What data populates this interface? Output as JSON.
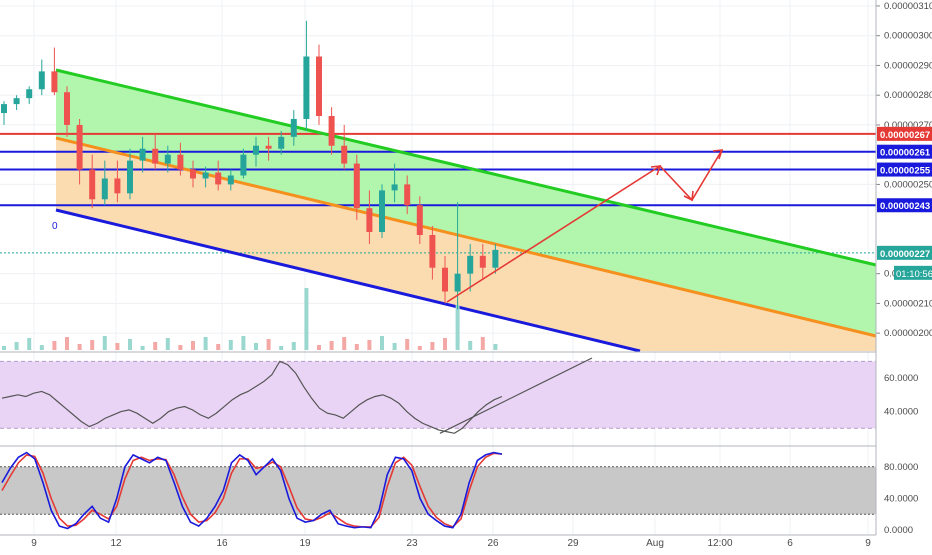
{
  "chart_data": [
    {
      "type": "candlestick",
      "panel": "price",
      "ylim": [
        1.94e-06,
        3.12e-06
      ],
      "y_ticks": [
        "0.00000310",
        "0.00000300",
        "0.00000290",
        "0.00000280",
        "0.00000270",
        "0.00000250",
        "0.00000220",
        "0.00000210",
        "0.00000200"
      ],
      "x_ticks": [
        "9",
        "12",
        "16",
        "19",
        "23",
        "26",
        "29",
        "Aug",
        "12:00",
        "6",
        "9"
      ],
      "series_ohlc": [
        {
          "o": 2.74,
          "h": 2.78,
          "l": 2.7,
          "c": 2.77
        },
        {
          "o": 2.77,
          "h": 2.8,
          "l": 2.75,
          "c": 2.79
        },
        {
          "o": 2.79,
          "h": 2.83,
          "l": 2.77,
          "c": 2.82
        },
        {
          "o": 2.82,
          "h": 2.92,
          "l": 2.8,
          "c": 2.88
        },
        {
          "o": 2.88,
          "h": 2.96,
          "l": 2.8,
          "c": 2.81
        },
        {
          "o": 2.81,
          "h": 2.83,
          "l": 2.66,
          "c": 2.7
        },
        {
          "o": 2.7,
          "h": 2.72,
          "l": 2.5,
          "c": 2.55
        },
        {
          "o": 2.55,
          "h": 2.6,
          "l": 2.42,
          "c": 2.45
        },
        {
          "o": 2.45,
          "h": 2.58,
          "l": 2.43,
          "c": 2.52
        },
        {
          "o": 2.52,
          "h": 2.58,
          "l": 2.44,
          "c": 2.47
        },
        {
          "o": 2.47,
          "h": 2.62,
          "l": 2.45,
          "c": 2.58
        },
        {
          "o": 2.58,
          "h": 2.66,
          "l": 2.54,
          "c": 2.62
        },
        {
          "o": 2.62,
          "h": 2.67,
          "l": 2.55,
          "c": 2.57
        },
        {
          "o": 2.57,
          "h": 2.63,
          "l": 2.54,
          "c": 2.6
        },
        {
          "o": 2.6,
          "h": 2.64,
          "l": 2.53,
          "c": 2.55
        },
        {
          "o": 2.55,
          "h": 2.58,
          "l": 2.49,
          "c": 2.52
        },
        {
          "o": 2.52,
          "h": 2.56,
          "l": 2.49,
          "c": 2.54
        },
        {
          "o": 2.54,
          "h": 2.58,
          "l": 2.48,
          "c": 2.5
        },
        {
          "o": 2.5,
          "h": 2.55,
          "l": 2.48,
          "c": 2.53
        },
        {
          "o": 2.53,
          "h": 2.62,
          "l": 2.52,
          "c": 2.6
        },
        {
          "o": 2.6,
          "h": 2.66,
          "l": 2.56,
          "c": 2.63
        },
        {
          "o": 2.63,
          "h": 2.66,
          "l": 2.58,
          "c": 2.62
        },
        {
          "o": 2.62,
          "h": 2.68,
          "l": 2.6,
          "c": 2.66
        },
        {
          "o": 2.66,
          "h": 2.75,
          "l": 2.63,
          "c": 2.72
        },
        {
          "o": 2.72,
          "h": 3.05,
          "l": 2.68,
          "c": 2.93
        },
        {
          "o": 2.93,
          "h": 2.97,
          "l": 2.7,
          "c": 2.73
        },
        {
          "o": 2.73,
          "h": 2.76,
          "l": 2.6,
          "c": 2.63
        },
        {
          "o": 2.63,
          "h": 2.7,
          "l": 2.55,
          "c": 2.57
        },
        {
          "o": 2.57,
          "h": 2.6,
          "l": 2.38,
          "c": 2.42
        },
        {
          "o": 2.42,
          "h": 2.48,
          "l": 2.3,
          "c": 2.34
        },
        {
          "o": 2.34,
          "h": 2.5,
          "l": 2.32,
          "c": 2.48
        },
        {
          "o": 2.48,
          "h": 2.57,
          "l": 2.44,
          "c": 2.5
        },
        {
          "o": 2.5,
          "h": 2.53,
          "l": 2.4,
          "c": 2.43
        },
        {
          "o": 2.43,
          "h": 2.46,
          "l": 2.3,
          "c": 2.33
        },
        {
          "o": 2.33,
          "h": 2.36,
          "l": 2.18,
          "c": 2.22
        },
        {
          "o": 2.22,
          "h": 2.26,
          "l": 2.1,
          "c": 2.14
        },
        {
          "o": 2.14,
          "h": 2.44,
          "l": 2.08,
          "c": 2.2
        },
        {
          "o": 2.2,
          "h": 2.3,
          "l": 2.14,
          "c": 2.26
        },
        {
          "o": 2.26,
          "h": 2.3,
          "l": 2.18,
          "c": 2.22
        },
        {
          "o": 2.22,
          "h": 2.3,
          "l": 2.2,
          "c": 2.28
        }
      ],
      "horizontal_levels": [
        {
          "label": "0.00000267",
          "value": 2.67,
          "color": "#e53935"
        },
        {
          "label": "0.00000261",
          "value": 2.61,
          "color": "#1a1adc"
        },
        {
          "label": "0.00000255",
          "value": 2.55,
          "color": "#1a1adc"
        },
        {
          "label": "0.00000243",
          "value": 2.43,
          "color": "#1a1adc"
        },
        {
          "label": "0.00000227",
          "value": 2.27,
          "color": "#26a69a"
        }
      ],
      "countdown_label": "01:10:56",
      "fib_label": "0",
      "colors": {
        "up": "#26a69a",
        "down": "#ef5350",
        "channel_top": "#22cc22",
        "channel_mid": "#f5901e",
        "channel_bottom": "#1a1adc",
        "arrow": "#e53935"
      }
    },
    {
      "type": "line",
      "panel": "rsi",
      "ylim": [
        20,
        75
      ],
      "y_ticks": [
        "60.0000",
        "40.0000"
      ],
      "bands": [
        70,
        30
      ],
      "values": [
        48,
        49,
        50,
        49,
        51,
        52,
        50,
        46,
        42,
        38,
        34,
        31,
        33,
        36,
        38,
        40,
        41,
        39,
        36,
        33,
        36,
        40,
        42,
        43,
        41,
        38,
        36,
        39,
        43,
        47,
        50,
        52,
        55,
        58,
        62,
        70,
        68,
        63,
        55,
        48,
        42,
        39,
        38,
        36,
        40,
        44,
        47,
        49,
        50,
        48,
        45,
        40,
        36,
        33,
        31,
        29,
        28,
        27,
        30,
        35,
        40,
        44,
        47,
        49
      ],
      "trendline": [
        [
          0.86,
          27
        ],
        [
          1.0,
          72
        ]
      ],
      "line_color": "#555555",
      "band_color": "#ead4f6"
    },
    {
      "type": "line",
      "panel": "stoch",
      "ylim": [
        -5,
        105
      ],
      "y_ticks": [
        "80.0000",
        "40.0000",
        "0.0000"
      ],
      "bands": [
        80,
        20
      ],
      "k_values": [
        60,
        78,
        92,
        98,
        90,
        60,
        25,
        5,
        2,
        8,
        20,
        30,
        15,
        10,
        40,
        80,
        95,
        90,
        85,
        92,
        88,
        60,
        30,
        10,
        5,
        15,
        30,
        50,
        85,
        95,
        88,
        70,
        80,
        90,
        75,
        40,
        15,
        10,
        12,
        20,
        25,
        8,
        5,
        3,
        4,
        3,
        25,
        70,
        92,
        90,
        75,
        40,
        20,
        12,
        5,
        3,
        20,
        60,
        88,
        95,
        98,
        96
      ],
      "d_values": [
        50,
        68,
        85,
        95,
        93,
        72,
        40,
        15,
        5,
        6,
        14,
        25,
        20,
        14,
        30,
        65,
        88,
        92,
        88,
        90,
        89,
        70,
        42,
        20,
        10,
        12,
        22,
        40,
        72,
        90,
        90,
        78,
        80,
        86,
        80,
        55,
        28,
        14,
        12,
        16,
        22,
        15,
        8,
        5,
        4,
        4,
        16,
        55,
        85,
        92,
        82,
        55,
        30,
        16,
        8,
        4,
        14,
        50,
        80,
        92,
        97,
        96
      ],
      "k_color": "#1a1adc",
      "d_color": "#e53935",
      "band_color": "#c8c8c8"
    }
  ]
}
